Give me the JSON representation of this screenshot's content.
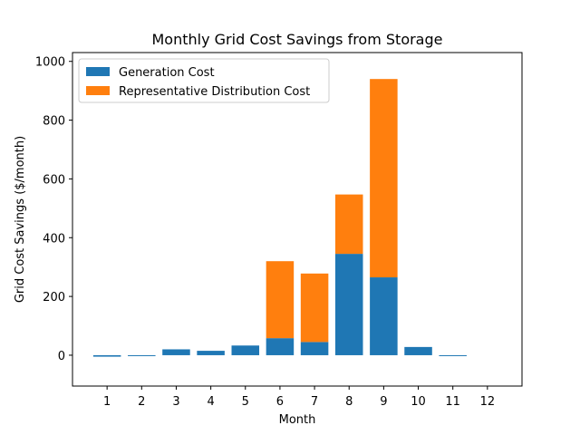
{
  "chart_data": {
    "type": "bar",
    "stacked": true,
    "title": "Monthly Grid Cost Savings from Storage",
    "xlabel": "Month",
    "ylabel": "Grid Cost Savings ($/month)",
    "categories": [
      "1",
      "2",
      "3",
      "4",
      "5",
      "6",
      "7",
      "8",
      "9",
      "10",
      "11",
      "12"
    ],
    "ylim": [
      -105,
      1030
    ],
    "yticks": [
      0,
      200,
      400,
      600,
      800,
      1000
    ],
    "grid": false,
    "legend_position": "top-left",
    "series": [
      {
        "name": "Generation Cost",
        "color": "#1f77b4",
        "values": [
          -5,
          -3,
          20,
          15,
          33,
          58,
          45,
          345,
          265,
          28,
          -2,
          0
        ]
      },
      {
        "name": "Representative Distribution Cost",
        "color": "#ff7f0e",
        "values": [
          0,
          0,
          0,
          0,
          0,
          262,
          233,
          202,
          675,
          0,
          0,
          0
        ]
      }
    ]
  }
}
